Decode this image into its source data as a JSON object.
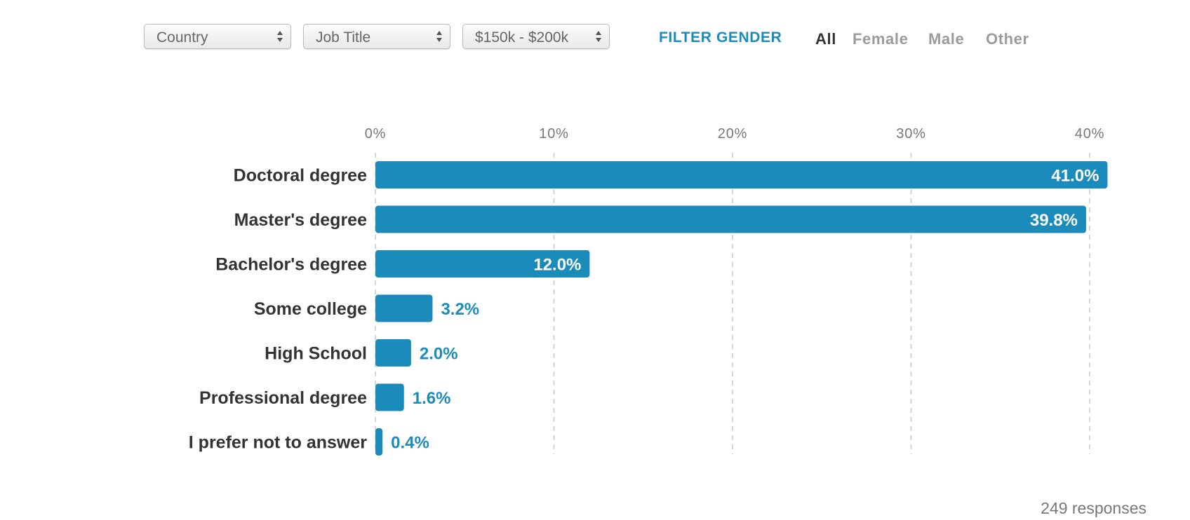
{
  "filters": {
    "selects": [
      {
        "value": "Country"
      },
      {
        "value": "Job Title"
      },
      {
        "value": "$150k - $200k"
      }
    ],
    "gender_label": "FILTER GENDER",
    "gender_options": [
      "All",
      "Female",
      "Male",
      "Other"
    ],
    "gender_selected": "All"
  },
  "chart_data": {
    "type": "bar",
    "orientation": "horizontal",
    "categories": [
      "Doctoral degree",
      "Master's degree",
      "Bachelor's degree",
      "Some college",
      "High School",
      "Professional degree",
      "I prefer not to answer"
    ],
    "values": [
      41.0,
      39.8,
      12.0,
      3.2,
      2.0,
      1.6,
      0.4
    ],
    "value_labels": [
      "41.0%",
      "39.8%",
      "12.0%",
      "3.2%",
      "2.0%",
      "1.6%",
      "0.4%"
    ],
    "x_ticks": [
      0,
      10,
      20,
      30,
      40
    ],
    "x_tick_labels": [
      "0%",
      "10%",
      "20%",
      "30%",
      "40%"
    ],
    "xlim": [
      0,
      40
    ],
    "grid": true,
    "bar_color": "#1a8bbb",
    "title": "",
    "xlabel": "",
    "ylabel": ""
  },
  "footer": {
    "responses": "249 responses"
  }
}
